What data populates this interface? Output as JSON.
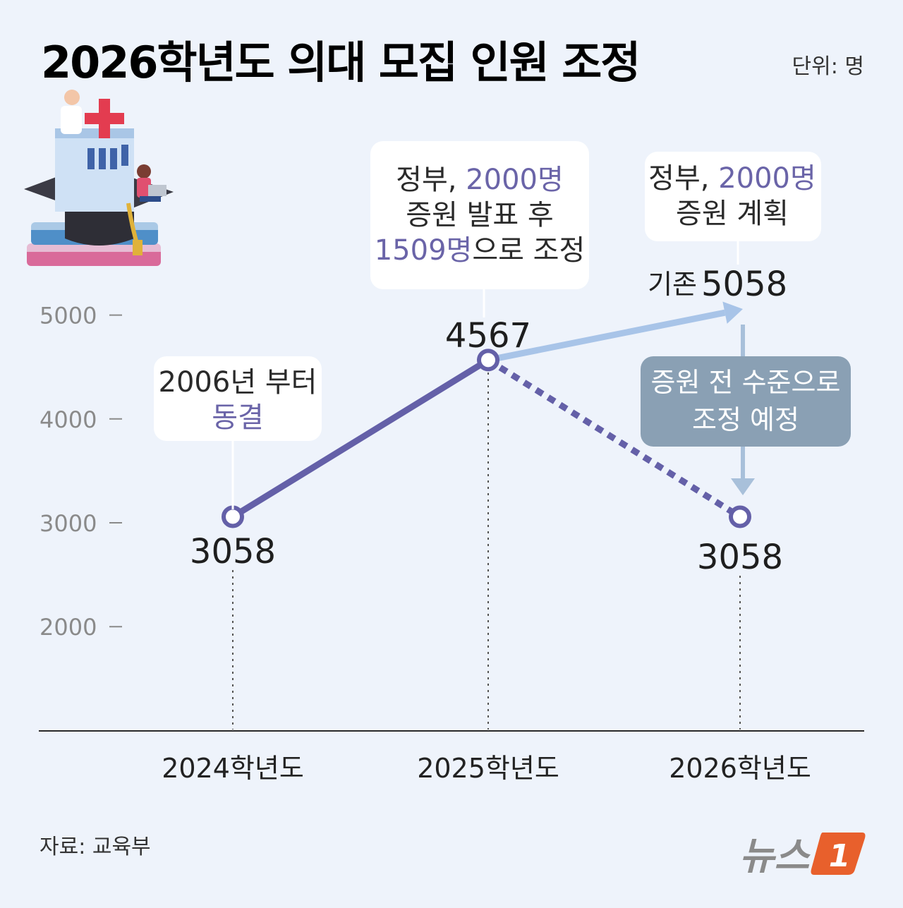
{
  "chart_data": {
    "type": "line",
    "title": "2026학년도 의대 모집 인원 조정",
    "unit": "단위: 명",
    "categories": [
      "2024학년도",
      "2025학년도",
      "2026학년도"
    ],
    "series": [
      {
        "values": [
          3058,
          4567,
          3058
        ],
        "style": "solid-then-dashed",
        "color": "#6460a8"
      },
      {
        "values": [
          null,
          4567,
          5058
        ],
        "style": "arrow",
        "color": "#a8c4e8"
      }
    ],
    "value_labels": [
      "3058",
      "4567",
      "3058"
    ],
    "yticks": [
      2000,
      3000,
      4000,
      5000
    ],
    "ytick_labels": [
      "2000",
      "3000",
      "4000",
      "5000"
    ],
    "ylim": [
      1000,
      5300
    ],
    "grid": false
  },
  "annotations": {
    "freeze": {
      "line1": "2006년 부터",
      "line2": "동결"
    },
    "adjust": {
      "line1a": "정부, ",
      "line1b": "2000명",
      "line2": "증원 발표 후",
      "line3a": "1509명",
      "line3b": "으로 조정"
    },
    "plan": {
      "line1a": "정부, ",
      "line1b": "2000명",
      "line2": "증원 계획"
    },
    "original": {
      "prefix": "기존",
      "value": "5058"
    },
    "revert": {
      "line1": "증원 전 수준으로",
      "line2": "조정 예정"
    }
  },
  "footer": {
    "source": "자료: 교육부",
    "logo": "뉴스",
    "logo_num": "1"
  },
  "colors": {
    "line": "#6460a8",
    "arrow": "#a8c4e8",
    "highlight": "#6a64a8",
    "revert_box": "#8aa0b4",
    "background": "#eef3fb",
    "logo": "#e8602c"
  }
}
